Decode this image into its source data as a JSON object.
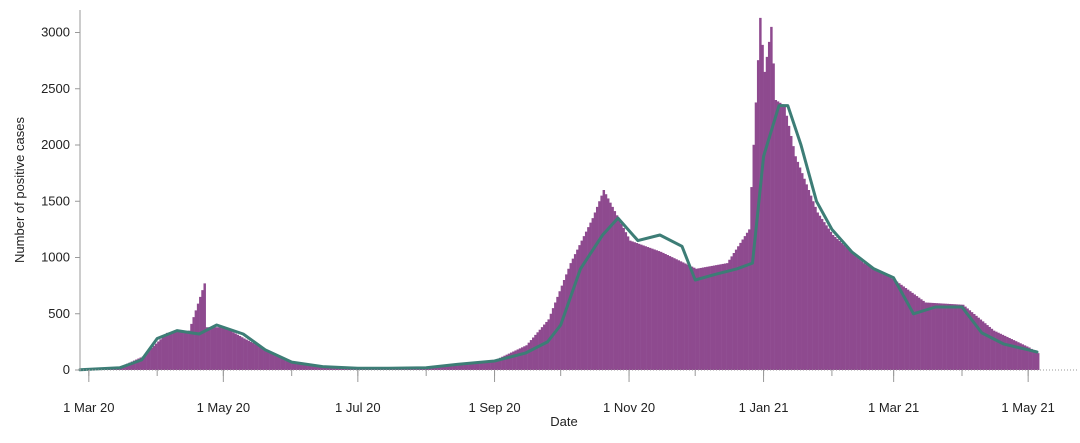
{
  "chart_data": {
    "type": "bar",
    "title": "",
    "xlabel": "Date",
    "ylabel": "Number of positive cases",
    "ylim": [
      0,
      3200
    ],
    "y_ticks": [
      0,
      500,
      1000,
      1500,
      2000,
      2500,
      3000
    ],
    "x_range": [
      "2020-02-26",
      "2021-05-10"
    ],
    "x_ticks": [
      {
        "date": "2020-03-01",
        "label": "1 Mar 20"
      },
      {
        "date": "2020-05-01",
        "label": "1 May 20"
      },
      {
        "date": "2020-07-01",
        "label": "1 Jul 20"
      },
      {
        "date": "2020-09-01",
        "label": "1 Sep 20"
      },
      {
        "date": "2020-11-01",
        "label": "1 Nov 20"
      },
      {
        "date": "2021-01-01",
        "label": "1 Jan 21"
      },
      {
        "date": "2021-03-01",
        "label": "1 Mar 21"
      },
      {
        "date": "2021-05-01",
        "label": "1 May 21"
      }
    ],
    "grid": false,
    "legend": "none",
    "colors": {
      "bars": "#8e4a8f",
      "line": "#3d7d76",
      "axis": "#999999"
    },
    "series": [
      {
        "type": "bar",
        "x": [
          "2020-03-01",
          "2020-03-15",
          "2020-03-25",
          "2020-04-05",
          "2020-04-15",
          "2020-04-22",
          "2020-04-23",
          "2020-05-01",
          "2020-05-10",
          "2020-05-20",
          "2020-06-01",
          "2020-06-15",
          "2020-07-01",
          "2020-07-15",
          "2020-08-01",
          "2020-08-15",
          "2020-09-01",
          "2020-09-15",
          "2020-09-25",
          "2020-10-05",
          "2020-10-15",
          "2020-10-20",
          "2020-11-01",
          "2020-11-15",
          "2020-12-01",
          "2020-12-15",
          "2020-12-25",
          "2020-12-30",
          "2021-01-01",
          "2021-01-04",
          "2021-01-06",
          "2021-01-10",
          "2021-01-15",
          "2021-01-25",
          "2021-02-01",
          "2021-02-15",
          "2021-03-01",
          "2021-03-15",
          "2021-04-01",
          "2021-04-15",
          "2021-05-01",
          "2021-05-05"
        ],
        "values": [
          5,
          30,
          120,
          330,
          350,
          770,
          380,
          380,
          280,
          180,
          60,
          30,
          15,
          15,
          20,
          45,
          90,
          220,
          450,
          950,
          1350,
          1600,
          1150,
          1050,
          900,
          950,
          1250,
          3130,
          2650,
          3050,
          2400,
          2350,
          1900,
          1400,
          1200,
          950,
          800,
          600,
          580,
          350,
          200,
          150
        ]
      },
      {
        "type": "line",
        "x": [
          "2020-02-26",
          "2020-03-15",
          "2020-03-25",
          "2020-04-01",
          "2020-04-10",
          "2020-04-20",
          "2020-04-28",
          "2020-05-10",
          "2020-05-20",
          "2020-06-01",
          "2020-06-15",
          "2020-07-01",
          "2020-07-15",
          "2020-08-01",
          "2020-08-15",
          "2020-09-01",
          "2020-09-15",
          "2020-09-25",
          "2020-10-01",
          "2020-10-10",
          "2020-10-20",
          "2020-10-27",
          "2020-11-05",
          "2020-11-15",
          "2020-11-25",
          "2020-12-01",
          "2020-12-10",
          "2020-12-20",
          "2020-12-27",
          "2021-01-01",
          "2021-01-08",
          "2021-01-12",
          "2021-01-18",
          "2021-01-25",
          "2021-02-01",
          "2021-02-10",
          "2021-02-20",
          "2021-03-01",
          "2021-03-10",
          "2021-03-20",
          "2021-04-01",
          "2021-04-10",
          "2021-04-20",
          "2021-05-01",
          "2021-05-05"
        ],
        "values": [
          2,
          20,
          90,
          280,
          350,
          320,
          400,
          320,
          180,
          70,
          30,
          15,
          15,
          20,
          50,
          80,
          150,
          250,
          400,
          900,
          1200,
          1350,
          1150,
          1200,
          1100,
          800,
          850,
          900,
          950,
          1900,
          2350,
          2350,
          2000,
          1500,
          1250,
          1050,
          900,
          820,
          500,
          560,
          560,
          330,
          230,
          180,
          160
        ]
      }
    ]
  }
}
